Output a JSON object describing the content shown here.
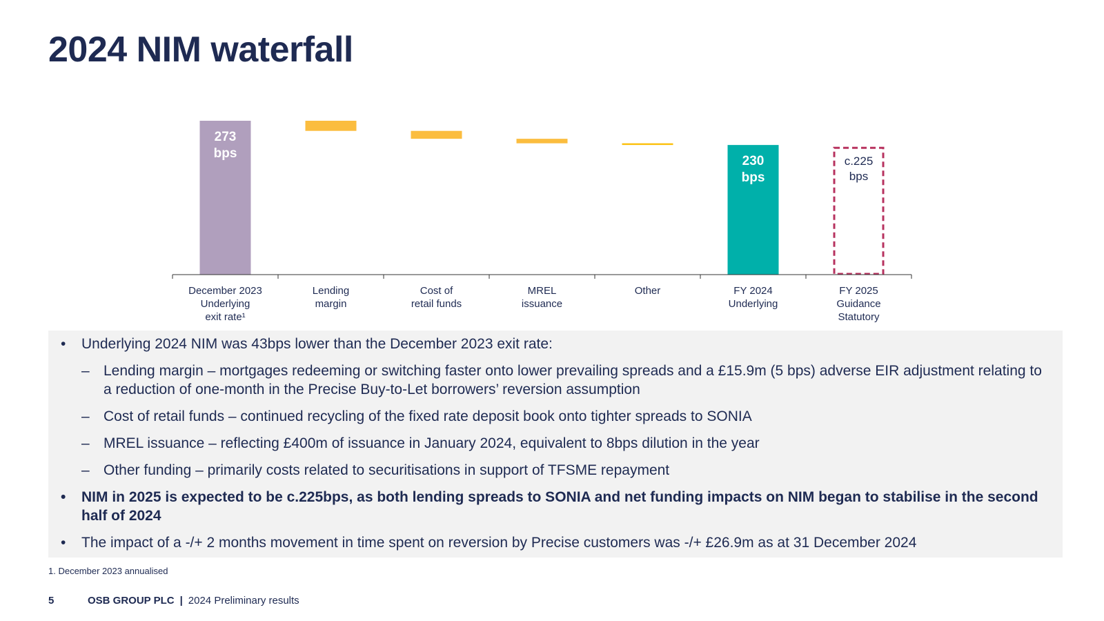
{
  "page": {
    "title": "2024 NIM waterfall",
    "footnote": "1. December 2023 annualised",
    "footer": {
      "page_number": "5",
      "company": "OSB GROUP PLC",
      "separator": "|",
      "doc_title": "2024 Preliminary results"
    }
  },
  "colors": {
    "start_bar": "#b09fbd",
    "delta_bar": "#fbbd3f",
    "other_bar": "#fcc00d",
    "end_bar": "#00b0aa",
    "guidance_border": "#b7325f",
    "text": "#1e2a52"
  },
  "chart_data": {
    "type": "waterfall",
    "unit": "bps",
    "y_range": [
      0,
      273
    ],
    "categories": [
      {
        "lines": [
          "December 2023",
          "Underlying",
          "exit rate¹"
        ]
      },
      {
        "lines": [
          "Lending",
          "margin"
        ]
      },
      {
        "lines": [
          "Cost of",
          "retail funds"
        ]
      },
      {
        "lines": [
          "MREL",
          "issuance"
        ]
      },
      {
        "lines": [
          "Other"
        ]
      },
      {
        "lines": [
          "FY 2024",
          "Underlying"
        ]
      },
      {
        "lines": [
          "FY 2025",
          "Guidance",
          "Statutory"
        ]
      }
    ],
    "bars": [
      {
        "kind": "total",
        "value": 273,
        "color": "#b09fbd",
        "label": [
          "273",
          "bps"
        ]
      },
      {
        "kind": "delta",
        "value": -18,
        "color": "#fbbd3f"
      },
      {
        "kind": "delta",
        "value": -14,
        "color": "#fbbd3f"
      },
      {
        "kind": "delta",
        "value": -8,
        "color": "#fbbd3f"
      },
      {
        "kind": "delta",
        "value": -3,
        "color": "#fcc00d"
      },
      {
        "kind": "total",
        "value": 230,
        "color": "#00b0aa",
        "label": [
          "230",
          "bps"
        ]
      },
      {
        "kind": "guidance",
        "value": 225,
        "color": "#b7325f",
        "label": [
          "c.225",
          "bps"
        ]
      }
    ]
  },
  "notes": [
    {
      "level": 1,
      "bold": false,
      "text": "Underlying 2024 NIM was 43bps lower than the December 2023 exit rate:"
    },
    {
      "level": 2,
      "bold": false,
      "text": "Lending margin – mortgages redeeming or switching faster onto lower prevailing spreads and a £15.9m (5 bps) adverse EIR adjustment relating to a reduction of one-month in the Precise Buy-to-Let borrowers’ reversion assumption"
    },
    {
      "level": 2,
      "bold": false,
      "text": "Cost of retail funds – continued recycling of the fixed rate deposit book onto tighter spreads to SONIA"
    },
    {
      "level": 2,
      "bold": false,
      "text": "MREL issuance – reflecting £400m of issuance in January 2024, equivalent to 8bps dilution in the year"
    },
    {
      "level": 2,
      "bold": false,
      "text": "Other funding – primarily costs related to securitisations in support of TFSME repayment"
    },
    {
      "level": 1,
      "bold": true,
      "text": "NIM in 2025 is expected to be c.225bps, as both lending spreads to SONIA and net funding impacts on NIM began to stabilise in the second half of 2024"
    },
    {
      "level": 1,
      "bold": false,
      "text": "The impact of a -/+ 2 months movement in time spent on reversion by Precise customers was -/+ £26.9m as at 31 December 2024"
    }
  ]
}
